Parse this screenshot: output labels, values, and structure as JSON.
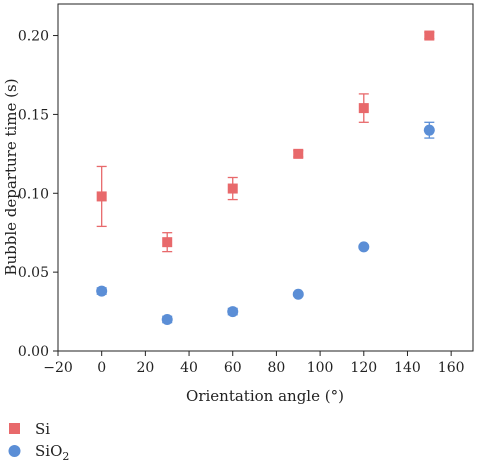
{
  "chart_data": {
    "type": "scatter",
    "xlabel": "Orientation angle (°)",
    "ylabel": "Bubble departure time (s)",
    "xlim": [
      -20,
      170
    ],
    "ylim": [
      0.0,
      0.22
    ],
    "xticks": [
      -20,
      0,
      20,
      40,
      60,
      80,
      100,
      120,
      140,
      160
    ],
    "yticks": [
      0.0,
      0.05,
      0.1,
      0.15,
      0.2
    ],
    "ytick_labels": [
      "0.00",
      "0.05",
      "0.10",
      "0.15",
      "0.20"
    ],
    "grid": false,
    "legend_position": "bottom-left",
    "series": [
      {
        "name": "Si",
        "marker": "square",
        "color": "#e8696b",
        "x": [
          0,
          30,
          60,
          90,
          120,
          150
        ],
        "y": [
          0.098,
          0.069,
          0.103,
          0.125,
          0.154,
          0.2
        ],
        "yerr": [
          0.019,
          0.006,
          0.007,
          0.002,
          0.009,
          0.002
        ]
      },
      {
        "name": "SiO",
        "name_subscript": "2",
        "marker": "circle",
        "color": "#5b8ed6",
        "x": [
          0,
          30,
          60,
          90,
          120,
          150
        ],
        "y": [
          0.038,
          0.02,
          0.025,
          0.036,
          0.066,
          0.14
        ],
        "yerr": [
          0.002,
          0.002,
          0.002,
          0.001,
          0.001,
          0.005
        ]
      }
    ]
  }
}
